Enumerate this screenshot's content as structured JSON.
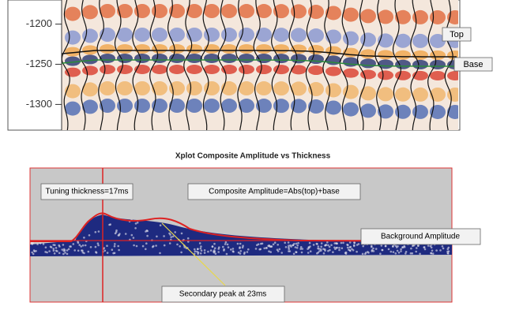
{
  "seismic": {
    "yticks": [
      -1200,
      -1250,
      -1300
    ],
    "ylim": [
      -1170,
      -1332
    ],
    "horizon_labels": [
      "Top",
      "Base"
    ]
  },
  "crossplot": {
    "title": "Xplot Composite Amplitude vs Thickness",
    "annotations": [
      "Tuning thickness=17ms",
      "Composite Amplitude=Abs(top)+base",
      "Background Amplitude",
      "Secondary peak at 23ms"
    ]
  }
}
